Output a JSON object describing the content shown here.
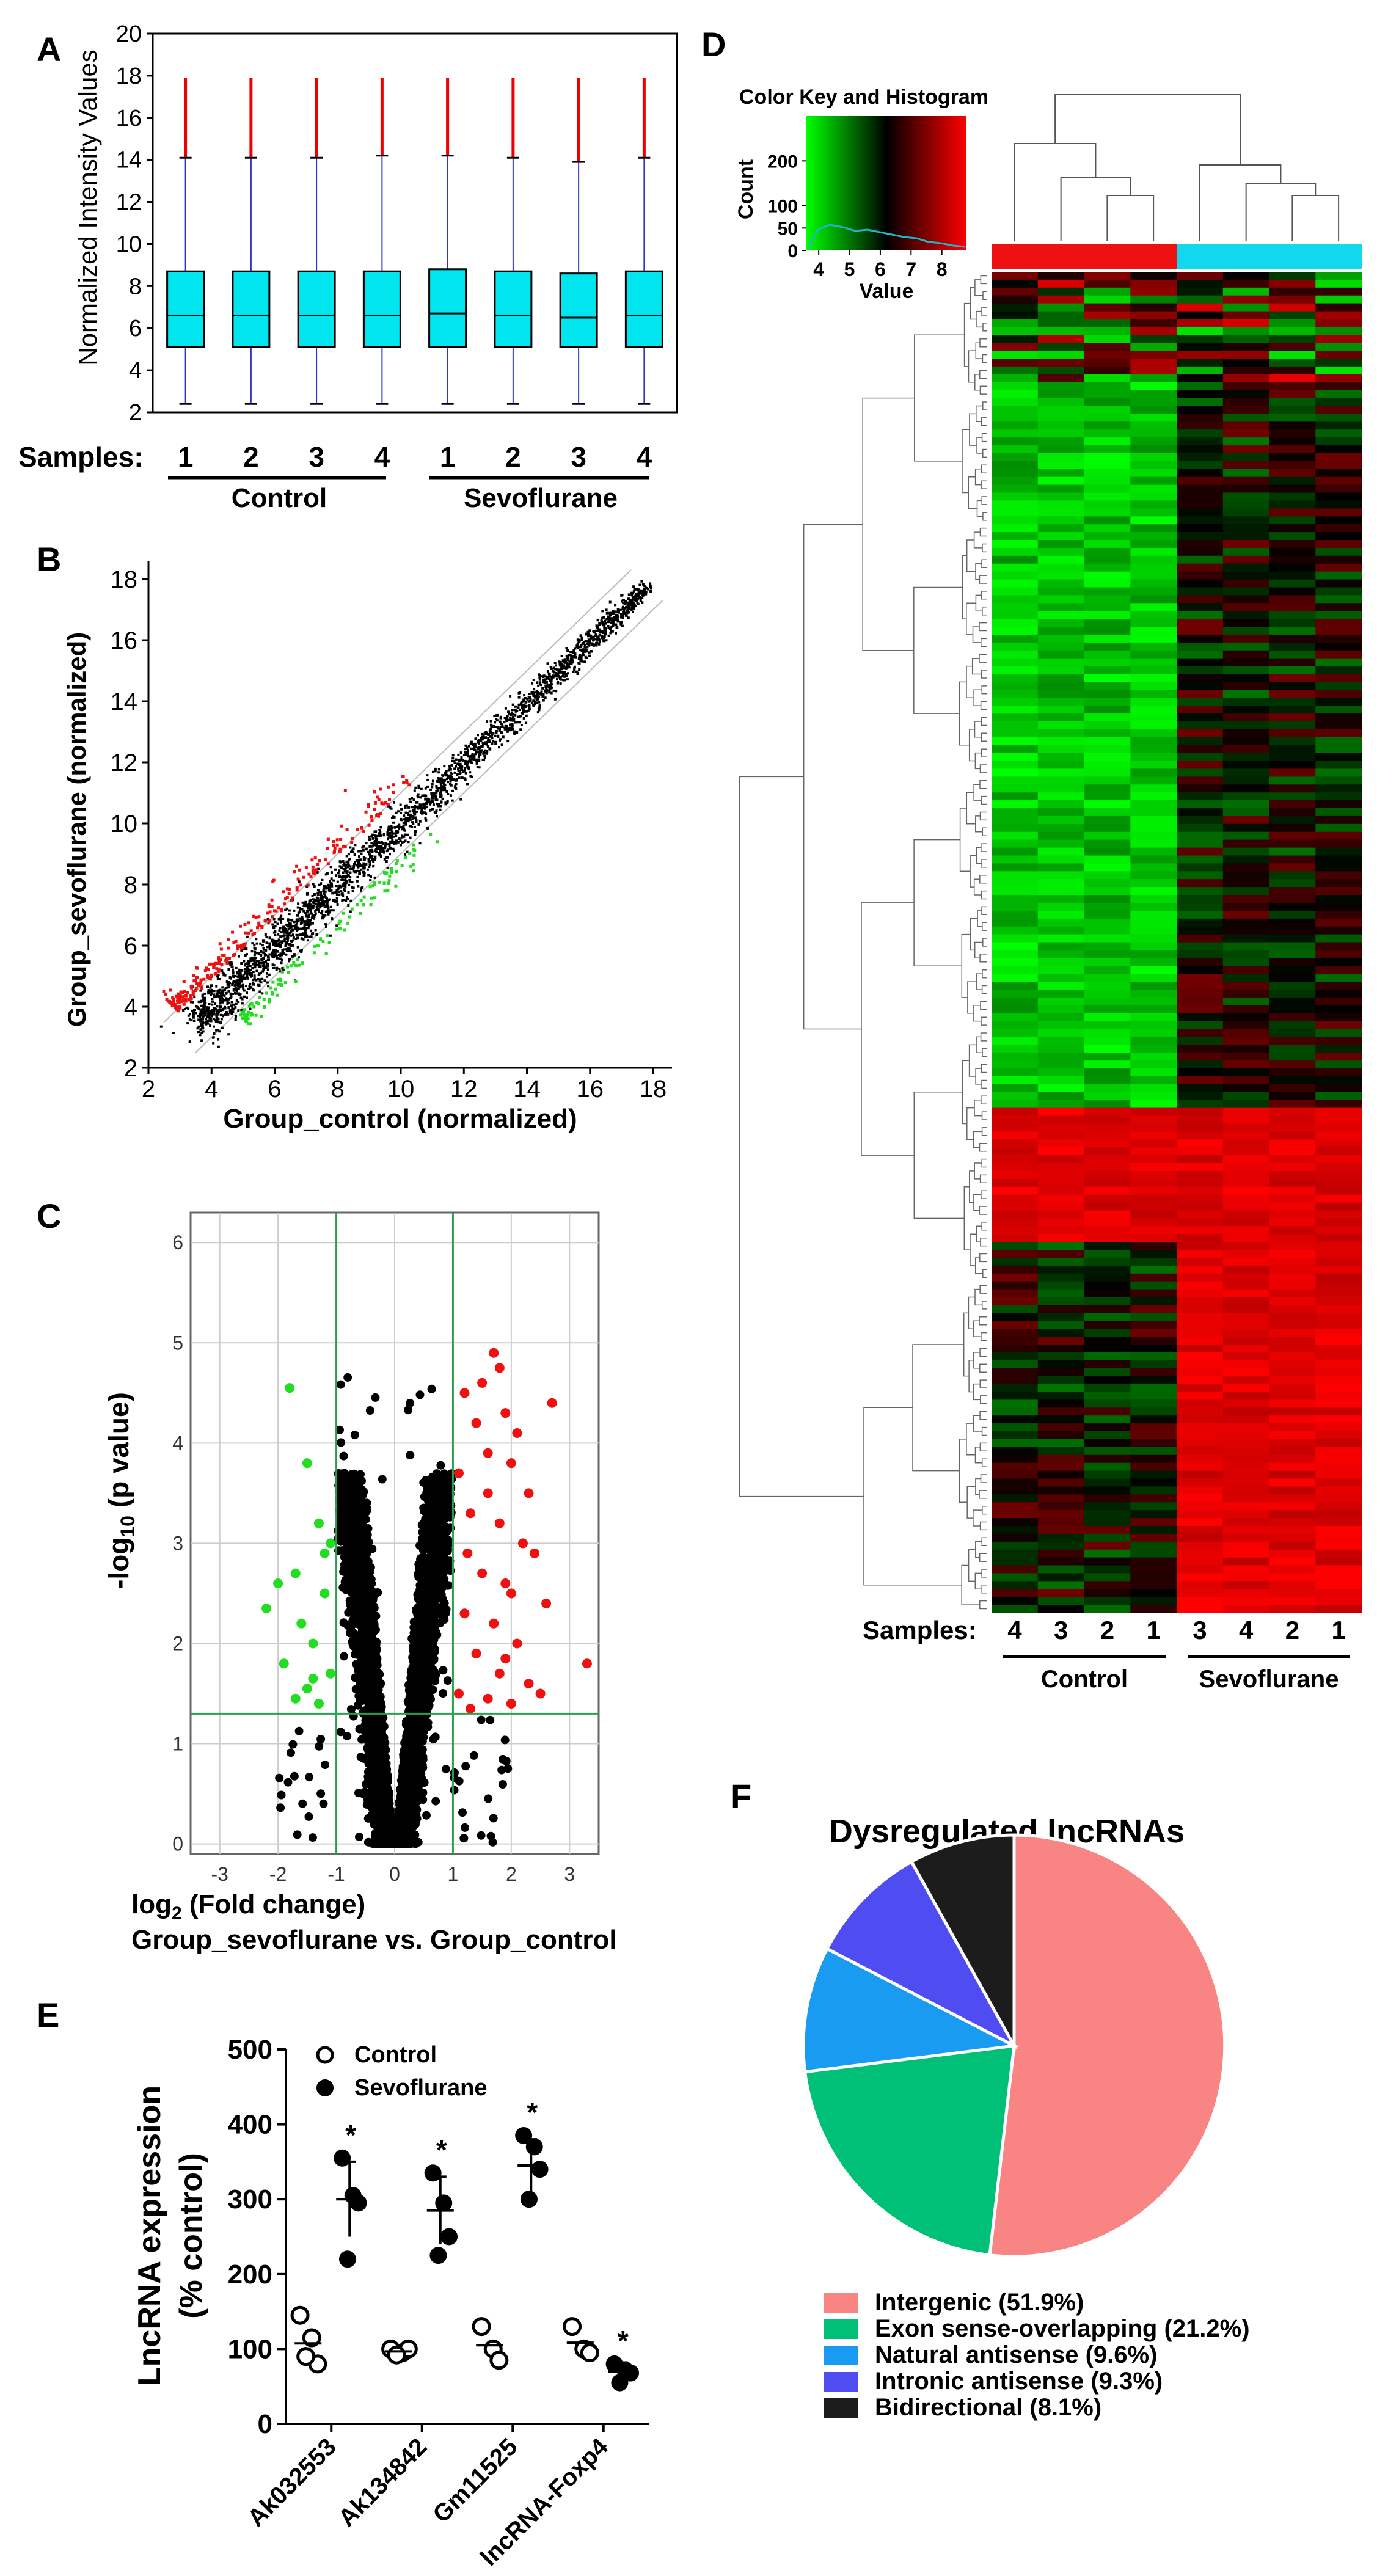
{
  "panel_labels": {
    "A": "A",
    "B": "B",
    "C": "C",
    "D": "D",
    "E": "E",
    "F": "F"
  },
  "colors": {
    "box_fill": "#00E5EE",
    "whisker": "#3333CC",
    "outlier": "#EE0000",
    "up": "#EE1111",
    "down": "#22DD22",
    "neutral": "#000000",
    "green_line": "#2E9E4E",
    "control_bar": "#EE1111",
    "sevo_bar": "#11D8EE",
    "pie": [
      "#F98484",
      "#00C077",
      "#1A9BF2",
      "#4F4DF2",
      "#1C1C1C"
    ]
  },
  "chart_data": [
    {
      "panel": "A",
      "type": "box",
      "ylabel": "Normalized Intensity Values",
      "yticks": [
        "2",
        "4",
        "6",
        "8",
        "10",
        "12",
        "14",
        "16",
        "18",
        "20"
      ],
      "ylim": [
        2,
        20
      ],
      "samples_label": "Samples:",
      "samples": [
        "1",
        "2",
        "3",
        "4",
        "1",
        "2",
        "3",
        "4"
      ],
      "groups": [
        "Control",
        "Sevoflurane"
      ],
      "boxes": [
        {
          "q1": 5.1,
          "median": 6.6,
          "q3": 8.7,
          "whisker_low": 2.4,
          "whisker_high": 14.1,
          "max": 17.9
        },
        {
          "q1": 5.1,
          "median": 6.6,
          "q3": 8.7,
          "whisker_low": 2.4,
          "whisker_high": 14.1,
          "max": 17.9
        },
        {
          "q1": 5.1,
          "median": 6.6,
          "q3": 8.7,
          "whisker_low": 2.4,
          "whisker_high": 14.1,
          "max": 17.9
        },
        {
          "q1": 5.1,
          "median": 6.6,
          "q3": 8.7,
          "whisker_low": 2.4,
          "whisker_high": 14.2,
          "max": 17.9
        },
        {
          "q1": 5.1,
          "median": 6.7,
          "q3": 8.8,
          "whisker_low": 2.4,
          "whisker_high": 14.2,
          "max": 17.9
        },
        {
          "q1": 5.1,
          "median": 6.6,
          "q3": 8.7,
          "whisker_low": 2.4,
          "whisker_high": 14.1,
          "max": 17.9
        },
        {
          "q1": 5.1,
          "median": 6.5,
          "q3": 8.6,
          "whisker_low": 2.4,
          "whisker_high": 13.9,
          "max": 17.9
        },
        {
          "q1": 5.1,
          "median": 6.6,
          "q3": 8.7,
          "whisker_low": 2.4,
          "whisker_high": 14.1,
          "max": 17.9
        }
      ]
    },
    {
      "panel": "B",
      "type": "scatter",
      "xlabel": "Group_control (normalized)",
      "ylabel": "Group_sevoflurane (normalized)",
      "xticks": [
        "2",
        "4",
        "6",
        "8",
        "10",
        "12",
        "14",
        "16",
        "18"
      ],
      "yticks": [
        "2",
        "4",
        "6",
        "8",
        "10",
        "12",
        "14",
        "16",
        "18"
      ],
      "xlim": [
        2,
        18.6
      ],
      "ylim": [
        2,
        18.6
      ],
      "fold_change_lines": 2,
      "trend": [
        [
          3.2,
          3.2
        ],
        [
          18.0,
          18.0
        ]
      ]
    },
    {
      "panel": "C",
      "type": "volcano",
      "xlabel_prefix": "log",
      "xlabel_sub": "2",
      "xlabel_suffix": " (Fold change)",
      "ylabel_prefix": "-log",
      "ylabel_sub": "10",
      "ylabel_suffix": " (p value)",
      "subtitle": "Group_sevoflurane vs. Group_control",
      "xticks": [
        "-3",
        "-2",
        "-1",
        "0",
        "1",
        "2",
        "3"
      ],
      "yticks": [
        "0",
        "1",
        "2",
        "3",
        "4",
        "5",
        "6"
      ],
      "xlim": [
        -3.5,
        3.5
      ],
      "ylim": [
        -0.1,
        6.3
      ],
      "fc_threshold": 1,
      "p_threshold": 1.3,
      "up_points": [
        [
          1.2,
          4.5
        ],
        [
          1.5,
          4.6
        ],
        [
          1.7,
          4.9
        ],
        [
          1.8,
          4.75
        ],
        [
          2.7,
          4.4
        ],
        [
          1.9,
          4.3
        ],
        [
          2.1,
          4.1
        ],
        [
          1.4,
          4.2
        ],
        [
          1.6,
          3.9
        ],
        [
          2.0,
          3.8
        ],
        [
          1.1,
          3.7
        ],
        [
          2.3,
          3.5
        ],
        [
          1.3,
          3.3
        ],
        [
          1.8,
          3.2
        ],
        [
          2.2,
          3.0
        ],
        [
          2.4,
          2.9
        ],
        [
          1.5,
          2.7
        ],
        [
          1.9,
          2.6
        ],
        [
          2.6,
          2.4
        ],
        [
          1.2,
          2.3
        ],
        [
          1.7,
          2.2
        ],
        [
          2.1,
          2.0
        ],
        [
          3.3,
          1.8
        ],
        [
          1.4,
          1.9
        ],
        [
          1.8,
          1.7
        ],
        [
          2.3,
          1.6
        ],
        [
          1.1,
          1.5
        ],
        [
          1.6,
          1.45
        ],
        [
          2.0,
          1.4
        ],
        [
          1.3,
          1.35
        ],
        [
          2.5,
          1.5
        ],
        [
          1.9,
          1.85
        ],
        [
          1.25,
          2.9
        ],
        [
          2.0,
          2.5
        ],
        [
          1.6,
          3.5
        ]
      ],
      "down_points": [
        [
          -1.8,
          4.55
        ],
        [
          -1.5,
          3.8
        ],
        [
          -1.3,
          3.2
        ],
        [
          -1.7,
          2.7
        ],
        [
          -1.2,
          2.5
        ],
        [
          -2.2,
          2.35
        ],
        [
          -1.6,
          2.2
        ],
        [
          -1.4,
          2.0
        ],
        [
          -1.9,
          1.8
        ],
        [
          -1.1,
          1.7
        ],
        [
          -1.5,
          1.55
        ],
        [
          -1.7,
          1.45
        ],
        [
          -1.3,
          1.4
        ],
        [
          -1.2,
          2.9
        ],
        [
          -2.0,
          2.6
        ],
        [
          -1.1,
          3.0
        ],
        [
          -1.4,
          1.65
        ]
      ]
    },
    {
      "panel": "D",
      "type": "heatmap",
      "color_key_title": "Color Key and Histogram",
      "key_ylabel": "Count",
      "key_yticks": [
        "0",
        "50",
        "100",
        "200"
      ],
      "key_xlabel": "Value",
      "key_xticks": [
        "4",
        "5",
        "6",
        "7",
        "8"
      ],
      "samples_label": "Samples:",
      "columns": [
        "4",
        "3",
        "2",
        "1",
        "3",
        "4",
        "2",
        "1"
      ],
      "groups": [
        "Control",
        "Sevoflurane"
      ],
      "blocks": [
        {
          "from": 0.0,
          "to": 0.08,
          "control": "mixed",
          "sevo": "mixed"
        },
        {
          "from": 0.08,
          "to": 0.62,
          "control": "green",
          "sevo": "dark"
        },
        {
          "from": 0.62,
          "to": 0.72,
          "control": "red",
          "sevo": "red"
        },
        {
          "from": 0.72,
          "to": 1.0,
          "control": "dark",
          "sevo": "red"
        }
      ]
    },
    {
      "panel": "E",
      "type": "scatter",
      "ylabel_line1": "LncRNA expression",
      "ylabel_line2": "(% control)",
      "yticks": [
        "0",
        "100",
        "200",
        "300",
        "400",
        "500"
      ],
      "ylim": [
        0,
        500
      ],
      "legend": [
        "Control",
        "Sevoflurane"
      ],
      "significance": "*",
      "genes": [
        {
          "name": "Ak032553",
          "control": [
            145,
            115,
            80,
            90
          ],
          "sevo": [
            355,
            305,
            295,
            220
          ],
          "sevo_mean": 300,
          "sevo_sd": 50
        },
        {
          "name": "Ak134842",
          "control": [
            100,
            95,
            100,
            92
          ],
          "sevo": [
            335,
            295,
            250,
            225
          ],
          "sevo_mean": 285,
          "sevo_sd": 45
        },
        {
          "name": "Gm11525",
          "control": [
            130,
            100,
            85
          ],
          "sevo": [
            385,
            370,
            340,
            300
          ],
          "sevo_mean": 345,
          "sevo_sd": 35
        },
        {
          "name": "lncRNA-Foxp4",
          "control": [
            130,
            100,
            95
          ],
          "sevo": [
            80,
            72,
            68,
            55
          ],
          "sevo_mean": 70,
          "sevo_sd": 12
        }
      ]
    },
    {
      "panel": "F",
      "type": "pie",
      "title": "Dysregulated lncRNAs",
      "slices": [
        {
          "label": "Intergenic (51.9%)",
          "value": 51.9
        },
        {
          "label": "Exon sense-overlapping (21.2%)",
          "value": 21.2
        },
        {
          "label": "Natural antisense (9.6%)",
          "value": 9.6
        },
        {
          "label": "Intronic antisense (9.3%)",
          "value": 9.3
        },
        {
          "label": "Bidirectional (8.1%)",
          "value": 8.1
        }
      ]
    }
  ]
}
